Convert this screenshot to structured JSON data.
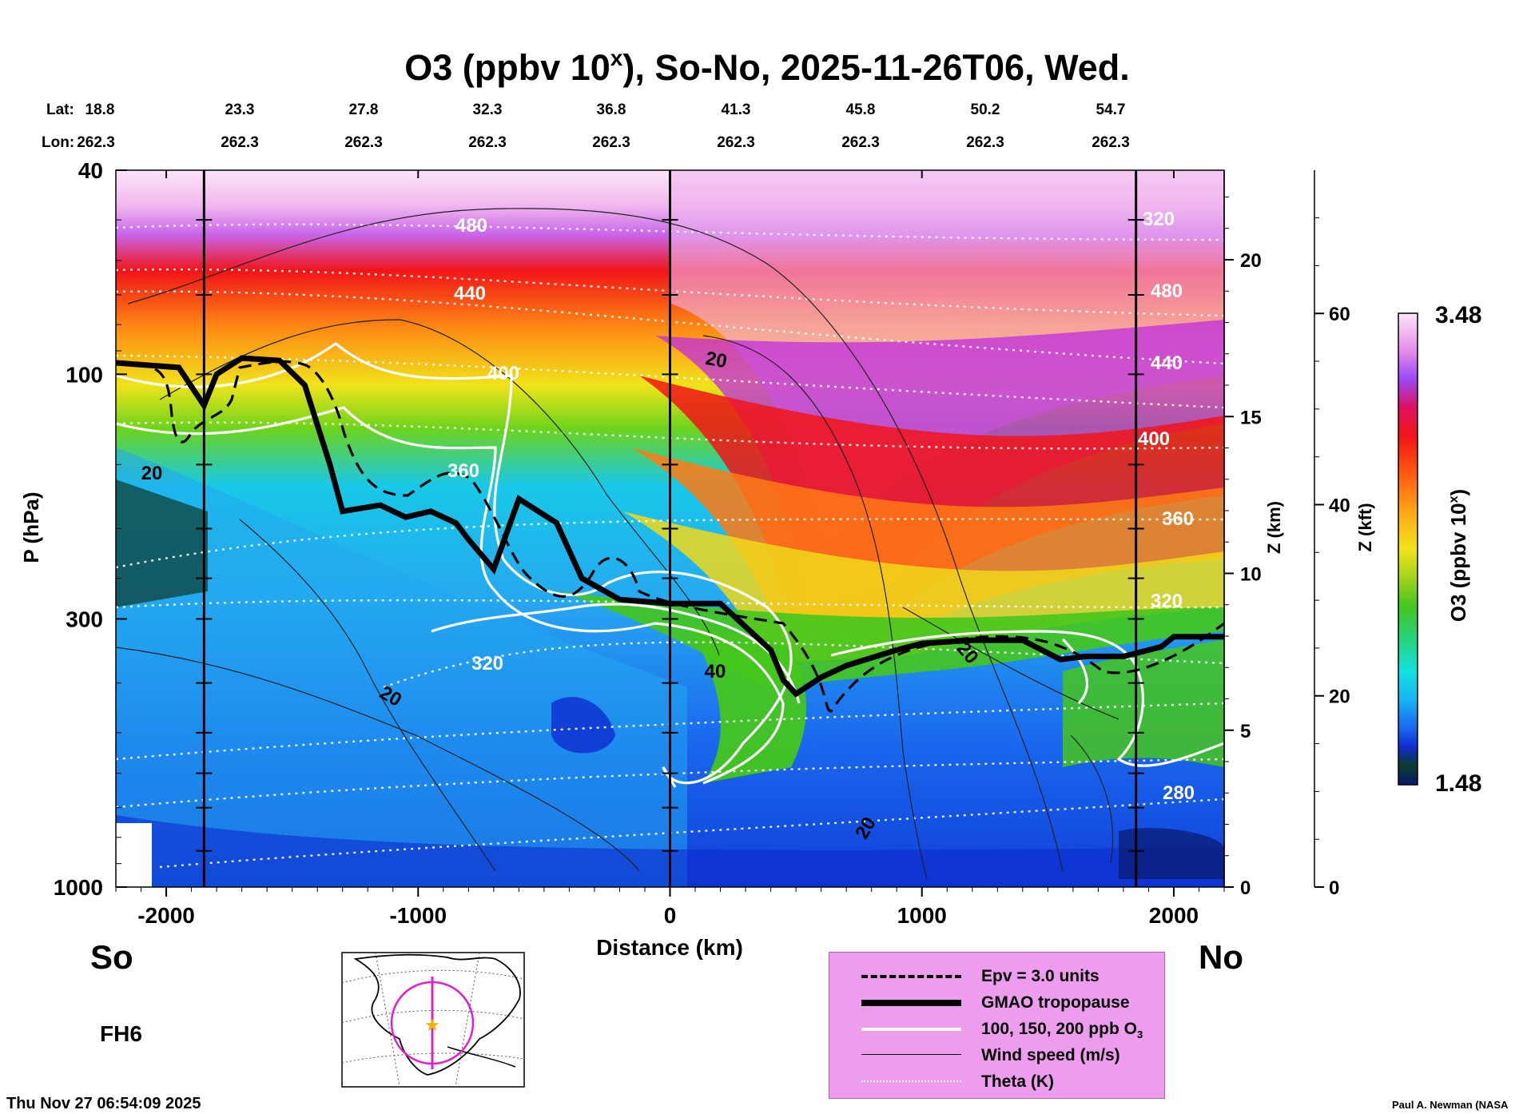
{
  "chart_data": {
    "type": "heatmap",
    "title": "O3 (ppbv 10",
    "title_sup": "x",
    "title_rest": "), So-No, 2025-11-26T06, Wed.",
    "xlabel": "Distance (km)",
    "ylabel": "P (hPa)",
    "y2label": "Z (km)",
    "y3label": "Z (kft)",
    "colorbar_label": "O3 (ppbv 10",
    "colorbar_label_sup": "x",
    "colorbar_label_rest": ")",
    "colorbar_max": "3.48",
    "colorbar_min": "1.48",
    "xlim": [
      -2200,
      2200
    ],
    "ylim_hpa": [
      1000,
      40
    ],
    "x_ticks": [
      "-2000",
      "-1000",
      "0",
      "1000",
      "2000"
    ],
    "x_tick_values": [
      -2000,
      -1000,
      0,
      1000,
      2000
    ],
    "y_ticks": [
      "40",
      "100",
      "300",
      "1000"
    ],
    "y_tick_values": [
      40,
      100,
      300,
      1000
    ],
    "z_km_ticks": [
      "0",
      "5",
      "10",
      "15",
      "20"
    ],
    "z_km_values": [
      0,
      5,
      10,
      15,
      20
    ],
    "z_kft_ticks": [
      "0",
      "20",
      "40",
      "60"
    ],
    "z_kft_values": [
      0,
      20,
      40,
      60
    ],
    "lat_label": "Lat:",
    "lon_label": "Lon:",
    "lats": [
      "18.8",
      "23.3",
      "27.8",
      "32.3",
      "36.8",
      "41.3",
      "45.8",
      "50.2",
      "54.7"
    ],
    "lons": [
      "262.3",
      "262.3",
      "262.3",
      "262.3",
      "262.3",
      "262.3",
      "262.3",
      "262.3",
      "262.3"
    ],
    "vertical_marker_lines_km": [
      -1850,
      0,
      1850
    ],
    "tropopause_hpa": {
      "x": [
        -2200,
        -1950,
        -1850,
        -1800,
        -1700,
        -1550,
        -1450,
        -1350,
        -1300,
        -1150,
        -1050,
        -950,
        -850,
        -800,
        -700,
        -600,
        -450,
        -350,
        -200,
        0,
        200,
        400,
        450,
        500,
        600,
        700,
        900,
        1000,
        1200,
        1400,
        1550,
        1650,
        1800,
        1950,
        2000,
        2200
      ],
      "p": [
        95,
        97,
        115,
        100,
        93,
        94,
        105,
        150,
        185,
        180,
        190,
        185,
        195,
        210,
        240,
        175,
        195,
        250,
        275,
        280,
        280,
        345,
        395,
        420,
        390,
        370,
        345,
        335,
        330,
        330,
        360,
        355,
        355,
        340,
        325,
        325
      ]
    },
    "theta_labels": [
      "480",
      "440",
      "400",
      "360",
      "320",
      "440",
      "400",
      "360",
      "320",
      "280",
      "320",
      "480"
    ],
    "wind_labels": [
      "20",
      "20",
      "20",
      "40",
      "20",
      "20"
    ],
    "direction_south": "So",
    "direction_north": "No"
  },
  "forecast_hour": "FH6",
  "timestamp": "Thu Nov 27 06:54:09 2025",
  "credit": "Paul A. Newman (NASA",
  "legend": {
    "items": [
      {
        "label": "Epv = 3.0 units"
      },
      {
        "label": "GMAO tropopause"
      },
      {
        "label": "100, 150, 200 ppb O",
        "sub": "3"
      },
      {
        "label": "Wind speed (m/s)"
      },
      {
        "label": "Theta (K)"
      }
    ],
    "background": "#ee9cee"
  },
  "colors": {
    "ozone_scale": [
      "#0a1a6e",
      "#0b3b2b",
      "#0e2ccf",
      "#1a67ee",
      "#18b4f2",
      "#12e3e0",
      "#22d58a",
      "#45c61c",
      "#a6d41b",
      "#f0e31a",
      "#ffa617",
      "#ff5a10",
      "#f11418",
      "#e01060",
      "#c02ce0",
      "#9a48f6",
      "#d96ee4",
      "#f0b6ee",
      "#fbe6f7"
    ]
  }
}
